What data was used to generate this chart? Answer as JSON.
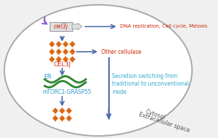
{
  "bg_color": "#f0f0f0",
  "ellipse_edge_color": "#aaaaaa",
  "ellipse_fill": "#ffffff",
  "gene_text": "cel3j",
  "gene_text_color": "#cc2200",
  "protein_color": "#dd6611",
  "er_color": "#338833",
  "mtorc_color": "#3399cc",
  "red_text_color": "#cc2200",
  "cyan_text_color": "#33aacc",
  "blue_arrow_color": "#4466aa",
  "promoter_color": "#8855cc",
  "gray_arrow_color": "#cccccc",
  "labels": {
    "cel3j": "CEL3J",
    "er": "ER",
    "mtorc": "mTORC1-GRASP55",
    "dna": "DNA replication, Cell cycle, Meiosis",
    "other": "Other cellulase",
    "secretion": "Secretion switching from\ntraditional to unconventional\nmode",
    "cytosol": "Cytosol",
    "extracellular": "Extracellular space"
  }
}
